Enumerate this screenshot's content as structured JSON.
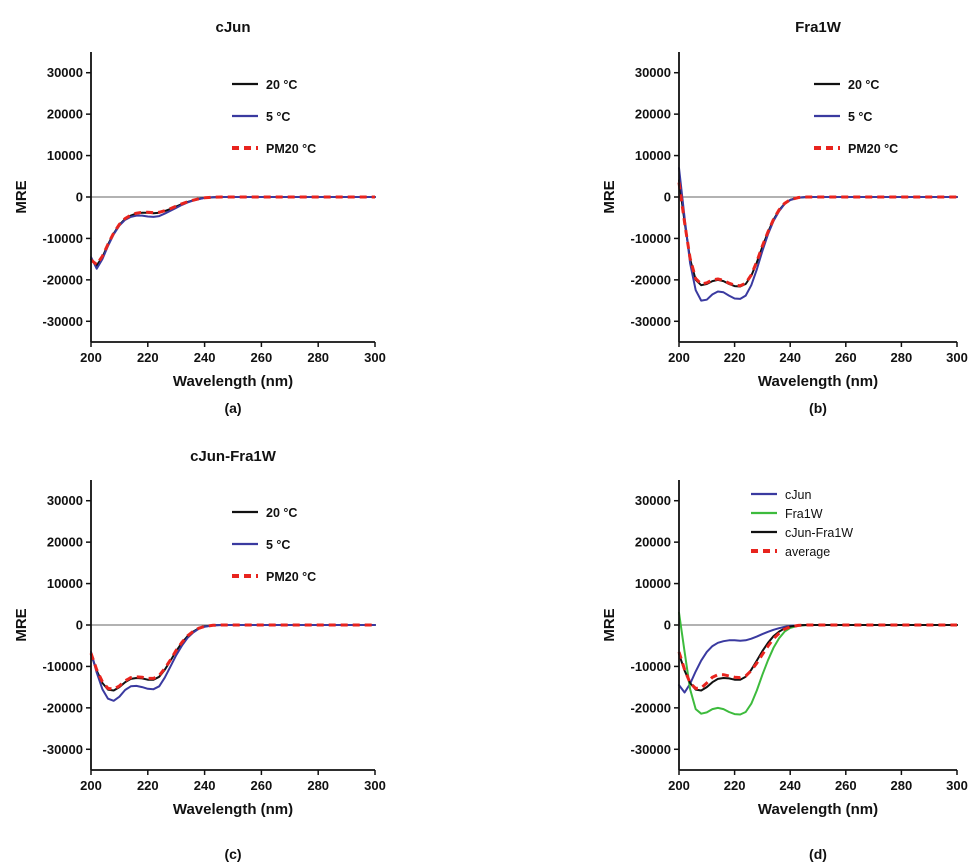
{
  "figure": {
    "panels": [
      {
        "title": "cJun",
        "caption": "(a)",
        "legend": [
          {
            "label": "20 °C",
            "color": "#111111",
            "dash": false
          },
          {
            "label": "5 °C",
            "color": "#3a3aa0",
            "dash": false
          },
          {
            "label": "PM20 °C",
            "color": "#e8241e",
            "dash": true
          }
        ]
      },
      {
        "title": "Fra1W",
        "caption": "(b)",
        "legend": [
          {
            "label": "20 °C",
            "color": "#111111",
            "dash": false
          },
          {
            "label": "5 °C",
            "color": "#3a3aa0",
            "dash": false
          },
          {
            "label": "PM20 °C",
            "color": "#e8241e",
            "dash": true
          }
        ]
      },
      {
        "title": "cJun-Fra1W",
        "caption": "(c)",
        "legend": [
          {
            "label": "20 °C",
            "color": "#111111",
            "dash": false
          },
          {
            "label": "5 °C",
            "color": "#3a3aa0",
            "dash": false
          },
          {
            "label": "PM20 °C",
            "color": "#e8241e",
            "dash": true
          }
        ]
      },
      {
        "title": "",
        "caption": "(d)",
        "legend": [
          {
            "label": "cJun",
            "color": "#3a3aa0",
            "dash": false
          },
          {
            "label": "Fra1W",
            "color": "#3dbb3d",
            "dash": false
          },
          {
            "label": "cJun-Fra1W",
            "color": "#111111",
            "dash": false
          },
          {
            "label": "average",
            "color": "#e8241e",
            "dash": true
          }
        ]
      }
    ]
  },
  "chart_data": [
    {
      "type": "line",
      "title": "cJun",
      "xlabel": "Wavelength (nm)",
      "ylabel": "MRE",
      "xlim": [
        200,
        300
      ],
      "ylim": [
        -35000,
        35000
      ],
      "xticks": [
        200,
        220,
        240,
        260,
        280,
        300
      ],
      "yticks": [
        30000,
        20000,
        10000,
        0,
        -10000,
        -20000,
        -30000
      ],
      "zero_line": true,
      "legend_position": "top-right",
      "series": [
        {
          "name": "20 °C",
          "color": "#111111",
          "dash": false,
          "x": [
            200,
            202,
            204,
            206,
            208,
            210,
            212,
            214,
            216,
            218,
            220,
            222,
            224,
            226,
            228,
            230,
            232,
            234,
            236,
            238,
            240,
            243,
            246,
            250,
            260,
            270,
            280,
            290,
            300
          ],
          "y": [
            -15000,
            -16500,
            -14500,
            -11500,
            -8800,
            -6700,
            -5300,
            -4500,
            -4000,
            -3800,
            -3800,
            -3900,
            -3800,
            -3400,
            -2900,
            -2300,
            -1700,
            -1200,
            -800,
            -450,
            -200,
            -60,
            0,
            0,
            0,
            0,
            0,
            0,
            0
          ]
        },
        {
          "name": "5 °C",
          "color": "#3a3aa0",
          "dash": false,
          "x": [
            200,
            202,
            204,
            206,
            208,
            210,
            212,
            214,
            216,
            218,
            220,
            222,
            224,
            226,
            228,
            230,
            232,
            234,
            236,
            238,
            240,
            243,
            246,
            250,
            260,
            270,
            280,
            290,
            300
          ],
          "y": [
            -14500,
            -17300,
            -15000,
            -11800,
            -9000,
            -6900,
            -5500,
            -4800,
            -4500,
            -4500,
            -4700,
            -4800,
            -4600,
            -4000,
            -3300,
            -2600,
            -1900,
            -1300,
            -850,
            -500,
            -220,
            -60,
            0,
            0,
            0,
            0,
            0,
            0,
            0
          ]
        },
        {
          "name": "PM20 °C",
          "color": "#e8241e",
          "dash": true,
          "x": [
            200,
            202,
            204,
            206,
            208,
            210,
            212,
            214,
            216,
            218,
            220,
            222,
            224,
            226,
            228,
            230,
            232,
            234,
            236,
            238,
            240,
            243,
            246,
            250,
            260,
            270,
            280,
            290,
            300
          ],
          "y": [
            -15200,
            -16300,
            -14300,
            -11400,
            -8700,
            -6600,
            -5200,
            -4400,
            -3900,
            -3700,
            -3700,
            -3800,
            -3700,
            -3300,
            -2800,
            -2200,
            -1650,
            -1150,
            -780,
            -430,
            -190,
            -50,
            0,
            0,
            0,
            0,
            0,
            0,
            0
          ]
        }
      ]
    },
    {
      "type": "line",
      "title": "Fra1W",
      "xlabel": "Wavelength (nm)",
      "ylabel": "MRE",
      "xlim": [
        200,
        300
      ],
      "ylim": [
        -35000,
        35000
      ],
      "xticks": [
        200,
        220,
        240,
        260,
        280,
        300
      ],
      "yticks": [
        30000,
        20000,
        10000,
        0,
        -10000,
        -20000,
        -30000
      ],
      "zero_line": true,
      "legend_position": "top-right",
      "series": [
        {
          "name": "20 °C",
          "color": "#111111",
          "dash": false,
          "x": [
            200,
            202,
            204,
            206,
            208,
            210,
            212,
            214,
            216,
            218,
            220,
            222,
            224,
            226,
            228,
            230,
            232,
            234,
            236,
            238,
            240,
            243,
            246,
            250,
            260,
            270,
            280,
            290,
            300
          ],
          "y": [
            4000,
            -6000,
            -15000,
            -20000,
            -21300,
            -21000,
            -20300,
            -20000,
            -20300,
            -21000,
            -21500,
            -21600,
            -21000,
            -19000,
            -15800,
            -12000,
            -8500,
            -5500,
            -3200,
            -1600,
            -700,
            -150,
            0,
            0,
            0,
            0,
            0,
            0,
            0
          ]
        },
        {
          "name": "5 °C",
          "color": "#3a3aa0",
          "dash": false,
          "x": [
            200,
            202,
            204,
            206,
            208,
            210,
            212,
            214,
            216,
            218,
            220,
            222,
            224,
            226,
            228,
            230,
            232,
            234,
            236,
            238,
            240,
            243,
            246,
            250,
            260,
            270,
            280,
            290,
            300
          ],
          "y": [
            7000,
            -5000,
            -16000,
            -22500,
            -25000,
            -24800,
            -23500,
            -22800,
            -23000,
            -23800,
            -24500,
            -24600,
            -23800,
            -21300,
            -17500,
            -13000,
            -9000,
            -5800,
            -3400,
            -1700,
            -750,
            -150,
            0,
            0,
            0,
            0,
            0,
            0,
            0
          ]
        },
        {
          "name": "PM20 °C",
          "color": "#e8241e",
          "dash": true,
          "x": [
            200,
            202,
            204,
            206,
            208,
            210,
            212,
            214,
            216,
            218,
            220,
            222,
            224,
            226,
            228,
            230,
            232,
            234,
            236,
            238,
            240,
            243,
            246,
            250,
            260,
            270,
            280,
            290,
            300
          ],
          "y": [
            3500,
            -6200,
            -14800,
            -19700,
            -21000,
            -20700,
            -20000,
            -19800,
            -20100,
            -20800,
            -21300,
            -21400,
            -20800,
            -18800,
            -15600,
            -11800,
            -8400,
            -5400,
            -3100,
            -1550,
            -650,
            -130,
            0,
            0,
            0,
            0,
            0,
            0,
            0
          ]
        }
      ]
    },
    {
      "type": "line",
      "title": "cJun-Fra1W",
      "xlabel": "Wavelength (nm)",
      "ylabel": "MRE",
      "xlim": [
        200,
        300
      ],
      "ylim": [
        -35000,
        35000
      ],
      "xticks": [
        200,
        220,
        240,
        260,
        280,
        300
      ],
      "yticks": [
        30000,
        20000,
        10000,
        0,
        -10000,
        -20000,
        -30000
      ],
      "zero_line": true,
      "legend_position": "top-right",
      "series": [
        {
          "name": "20 °C",
          "color": "#111111",
          "dash": false,
          "x": [
            200,
            202,
            204,
            206,
            208,
            210,
            212,
            214,
            216,
            218,
            220,
            222,
            224,
            226,
            228,
            230,
            232,
            234,
            236,
            238,
            240,
            243,
            246,
            250,
            260,
            270,
            280,
            290,
            300
          ],
          "y": [
            -7000,
            -11000,
            -14000,
            -15600,
            -15800,
            -15000,
            -13800,
            -13000,
            -12800,
            -12900,
            -13200,
            -13200,
            -12500,
            -10800,
            -8600,
            -6300,
            -4300,
            -2700,
            -1600,
            -800,
            -350,
            -80,
            0,
            0,
            0,
            0,
            0,
            0,
            0
          ]
        },
        {
          "name": "5 °C",
          "color": "#3a3aa0",
          "dash": false,
          "x": [
            200,
            202,
            204,
            206,
            208,
            210,
            212,
            214,
            216,
            218,
            220,
            222,
            224,
            226,
            228,
            230,
            232,
            234,
            236,
            238,
            240,
            243,
            246,
            250,
            260,
            270,
            280,
            290,
            300
          ],
          "y": [
            -6500,
            -11500,
            -15500,
            -17800,
            -18300,
            -17300,
            -15700,
            -14800,
            -14700,
            -15000,
            -15400,
            -15500,
            -14800,
            -12700,
            -10000,
            -7300,
            -5000,
            -3100,
            -1800,
            -900,
            -400,
            -90,
            0,
            0,
            0,
            0,
            0,
            0,
            0
          ]
        },
        {
          "name": "PM20 °C",
          "color": "#e8241e",
          "dash": true,
          "x": [
            200,
            202,
            204,
            206,
            208,
            210,
            212,
            214,
            216,
            218,
            220,
            222,
            224,
            226,
            228,
            230,
            232,
            234,
            236,
            238,
            240,
            243,
            246,
            250,
            260,
            270,
            280,
            290,
            300
          ],
          "y": [
            -6800,
            -10800,
            -13700,
            -15300,
            -15500,
            -14700,
            -13500,
            -12700,
            -12500,
            -12600,
            -12900,
            -12900,
            -12200,
            -10500,
            -8400,
            -6100,
            -4200,
            -2600,
            -1550,
            -780,
            -330,
            -70,
            0,
            0,
            0,
            0,
            0,
            0,
            0
          ]
        }
      ]
    },
    {
      "type": "line",
      "title": "",
      "xlabel": "Wavelength (nm)",
      "ylabel": "MRE",
      "xlim": [
        200,
        300
      ],
      "ylim": [
        -35000,
        35000
      ],
      "xticks": [
        200,
        220,
        240,
        260,
        280,
        300
      ],
      "yticks": [
        30000,
        20000,
        10000,
        0,
        -10000,
        -20000,
        -30000
      ],
      "zero_line": true,
      "legend_position": "top-right",
      "series": [
        {
          "name": "cJun",
          "color": "#3a3aa0",
          "dash": false,
          "x": [
            200,
            202,
            204,
            206,
            208,
            210,
            212,
            214,
            216,
            218,
            220,
            222,
            224,
            226,
            228,
            230,
            232,
            234,
            236,
            238,
            240,
            243,
            246,
            250,
            260,
            270,
            280,
            290,
            300
          ],
          "y": [
            -14500,
            -16300,
            -14200,
            -11200,
            -8600,
            -6500,
            -5100,
            -4300,
            -3900,
            -3700,
            -3700,
            -3800,
            -3700,
            -3300,
            -2800,
            -2200,
            -1650,
            -1150,
            -780,
            -430,
            -190,
            -50,
            0,
            0,
            0,
            0,
            0,
            0,
            0
          ]
        },
        {
          "name": "Fra1W",
          "color": "#3dbb3d",
          "dash": false,
          "x": [
            200,
            202,
            204,
            206,
            208,
            210,
            212,
            214,
            216,
            218,
            220,
            222,
            224,
            226,
            228,
            230,
            232,
            234,
            236,
            238,
            240,
            243,
            246,
            250,
            260,
            270,
            280,
            290,
            300
          ],
          "y": [
            3000,
            -6500,
            -15500,
            -20300,
            -21400,
            -21100,
            -20300,
            -20000,
            -20300,
            -21000,
            -21500,
            -21600,
            -21000,
            -19000,
            -15800,
            -12000,
            -8500,
            -5500,
            -3200,
            -1600,
            -700,
            -150,
            0,
            0,
            0,
            0,
            0,
            0,
            0
          ]
        },
        {
          "name": "cJun-Fra1W",
          "color": "#111111",
          "dash": false,
          "x": [
            200,
            202,
            204,
            206,
            208,
            210,
            212,
            214,
            216,
            218,
            220,
            222,
            224,
            226,
            228,
            230,
            232,
            234,
            236,
            238,
            240,
            243,
            246,
            250,
            260,
            270,
            280,
            290,
            300
          ],
          "y": [
            -7000,
            -11000,
            -14000,
            -15600,
            -15800,
            -15000,
            -13800,
            -13000,
            -12800,
            -12900,
            -13200,
            -13200,
            -12500,
            -10800,
            -8600,
            -6300,
            -4300,
            -2700,
            -1600,
            -800,
            -350,
            -80,
            0,
            0,
            0,
            0,
            0,
            0,
            0
          ]
        },
        {
          "name": "average",
          "color": "#e8241e",
          "dash": true,
          "x": [
            200,
            202,
            204,
            206,
            208,
            210,
            212,
            214,
            216,
            218,
            220,
            222,
            224,
            226,
            228,
            230,
            232,
            234,
            236,
            238,
            240,
            243,
            246,
            250,
            260,
            270,
            280,
            290,
            300
          ],
          "y": [
            -6500,
            -10800,
            -14000,
            -15300,
            -15200,
            -14000,
            -12600,
            -12000,
            -12000,
            -12300,
            -12600,
            -12700,
            -12300,
            -11000,
            -9200,
            -7100,
            -5100,
            -3300,
            -2000,
            -1000,
            -450,
            -100,
            0,
            0,
            0,
            0,
            0,
            0,
            0
          ]
        }
      ]
    }
  ]
}
